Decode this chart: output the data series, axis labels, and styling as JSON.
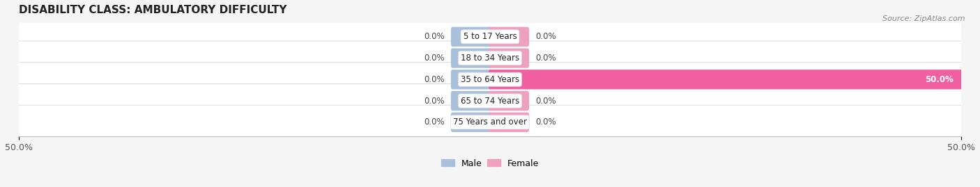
{
  "title": "DISABILITY CLASS: AMBULATORY DIFFICULTY",
  "source": "Source: ZipAtlas.com",
  "categories": [
    "5 to 17 Years",
    "18 to 34 Years",
    "35 to 64 Years",
    "65 to 74 Years",
    "75 Years and over"
  ],
  "male_values": [
    0.0,
    0.0,
    0.0,
    0.0,
    0.0
  ],
  "female_values": [
    0.0,
    0.0,
    50.0,
    0.0,
    0.0
  ],
  "x_max": 50.0,
  "x_min": -50.0,
  "male_color": "#a8c0dc",
  "female_color": "#f0a0bf",
  "female_color_large": "#f060a0",
  "bar_height": 0.62,
  "stub_size": 4.0,
  "background_color": "#f5f5f5",
  "row_bg_color": "#eeeeee",
  "title_fontsize": 11,
  "label_fontsize": 8.5,
  "tick_fontsize": 9,
  "value_label_fontsize": 8.5,
  "legend_fontsize": 9
}
